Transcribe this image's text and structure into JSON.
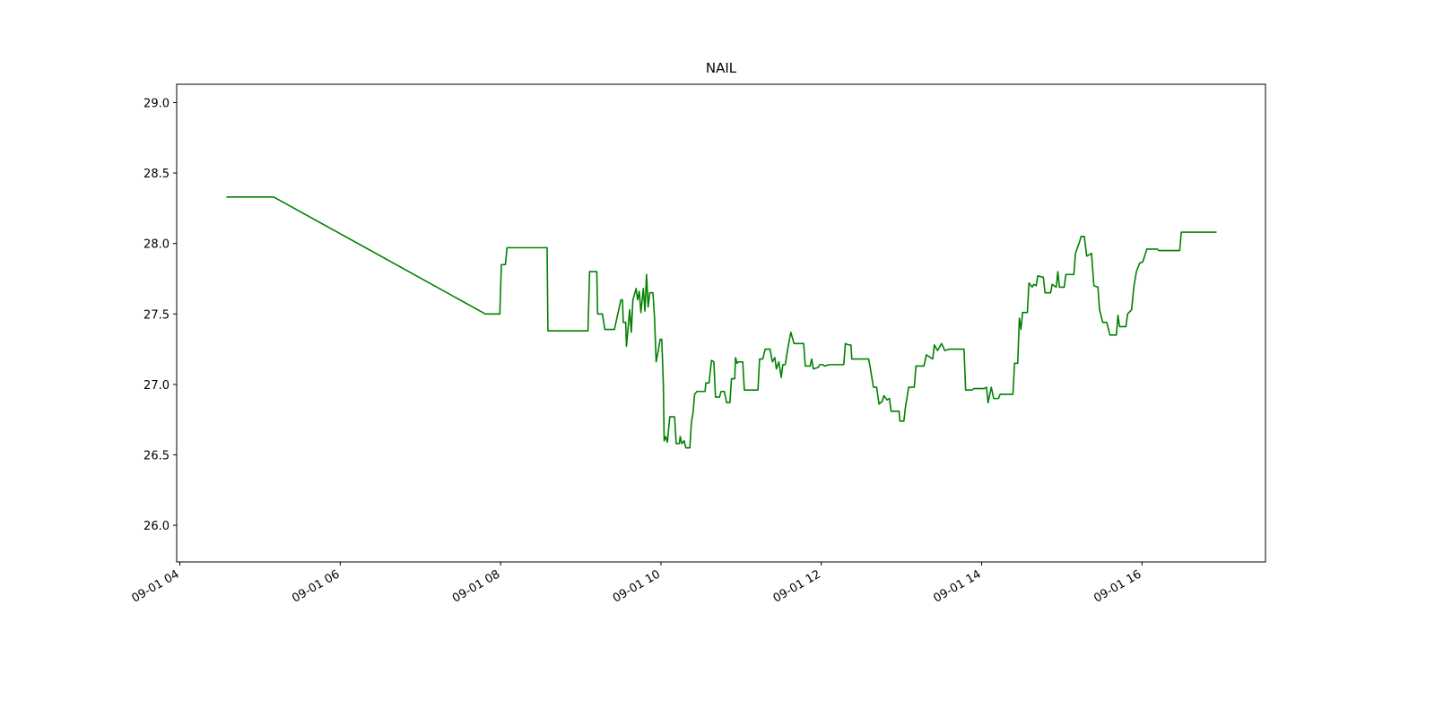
{
  "chart_data": {
    "type": "line",
    "title": "NAIL",
    "color": "#008000",
    "grid": false,
    "x": [
      4.58,
      5.17,
      7.81,
      7.99,
      8.01,
      8.06,
      8.08,
      8.58,
      8.59,
      9.09,
      9.11,
      9.2,
      9.21,
      9.27,
      9.3,
      9.42,
      9.5,
      9.52,
      9.53,
      9.56,
      9.57,
      9.61,
      9.63,
      9.65,
      9.69,
      9.71,
      9.73,
      9.75,
      9.78,
      9.8,
      9.82,
      9.84,
      9.86,
      9.9,
      9.92,
      9.94,
      9.97,
      9.99,
      10.01,
      10.03,
      10.04,
      10.06,
      10.08,
      10.11,
      10.17,
      10.19,
      10.23,
      10.24,
      10.26,
      10.29,
      10.31,
      10.36,
      10.38,
      10.4,
      10.42,
      10.45,
      10.55,
      10.56,
      10.6,
      10.63,
      10.66,
      10.68,
      10.73,
      10.75,
      10.79,
      10.82,
      10.86,
      10.88,
      10.92,
      10.93,
      10.95,
      10.97,
      11.02,
      11.04,
      11.21,
      11.23,
      11.27,
      11.3,
      11.36,
      11.39,
      11.42,
      11.44,
      11.47,
      11.5,
      11.52,
      11.55,
      11.59,
      11.62,
      11.66,
      11.78,
      11.8,
      11.86,
      11.88,
      11.9,
      11.96,
      11.98,
      12.02,
      12.04,
      12.1,
      12.28,
      12.3,
      12.34,
      12.37,
      12.38,
      12.59,
      12.61,
      12.65,
      12.69,
      12.72,
      12.76,
      12.78,
      12.82,
      12.85,
      12.87,
      12.97,
      12.98,
      13.03,
      13.05,
      13.09,
      13.16,
      13.18,
      13.28,
      13.31,
      13.39,
      13.41,
      13.45,
      13.5,
      13.54,
      13.59,
      13.78,
      13.8,
      13.88,
      13.9,
      14.03,
      14.06,
      14.08,
      14.12,
      14.15,
      14.21,
      14.23,
      14.39,
      14.41,
      14.45,
      14.47,
      14.49,
      14.51,
      14.57,
      14.59,
      14.63,
      14.65,
      14.68,
      14.7,
      14.77,
      14.79,
      14.86,
      14.88,
      14.93,
      14.95,
      14.97,
      15.03,
      15.05,
      15.15,
      15.17,
      15.22,
      15.24,
      15.28,
      15.31,
      15.37,
      15.4,
      15.45,
      15.47,
      15.51,
      15.56,
      15.6,
      15.68,
      15.7,
      15.72,
      15.8,
      15.82,
      15.87,
      15.9,
      15.93,
      15.97,
      16.01,
      16.06,
      16.19,
      16.21,
      16.47,
      16.49,
      16.93
    ],
    "values": [
      28.33,
      28.33,
      27.5,
      27.5,
      27.85,
      27.85,
      27.97,
      27.97,
      27.38,
      27.38,
      27.8,
      27.8,
      27.5,
      27.5,
      27.39,
      27.39,
      27.6,
      27.6,
      27.44,
      27.44,
      27.27,
      27.53,
      27.37,
      27.6,
      27.68,
      27.6,
      27.66,
      27.51,
      27.68,
      27.52,
      27.78,
      27.55,
      27.65,
      27.65,
      27.47,
      27.16,
      27.25,
      27.32,
      27.32,
      27.0,
      26.6,
      26.63,
      26.59,
      26.77,
      26.77,
      26.58,
      26.58,
      26.63,
      26.58,
      26.6,
      26.55,
      26.55,
      26.73,
      26.8,
      26.93,
      26.95,
      26.95,
      27.01,
      27.01,
      27.17,
      27.16,
      26.91,
      26.91,
      26.95,
      26.95,
      26.87,
      26.87,
      27.04,
      27.04,
      27.19,
      27.15,
      27.16,
      27.16,
      26.96,
      26.96,
      27.18,
      27.18,
      27.25,
      27.25,
      27.16,
      27.19,
      27.11,
      27.16,
      27.05,
      27.14,
      27.14,
      27.28,
      27.37,
      27.29,
      27.29,
      27.13,
      27.13,
      27.18,
      27.11,
      27.12,
      27.14,
      27.14,
      27.13,
      27.14,
      27.14,
      27.29,
      27.28,
      27.28,
      27.18,
      27.18,
      27.12,
      26.98,
      26.98,
      26.86,
      26.88,
      26.92,
      26.89,
      26.9,
      26.81,
      26.81,
      26.74,
      26.74,
      26.84,
      26.98,
      26.98,
      27.13,
      27.13,
      27.21,
      27.18,
      27.28,
      27.24,
      27.29,
      27.24,
      27.25,
      27.25,
      26.96,
      26.96,
      26.97,
      26.97,
      26.98,
      26.87,
      26.98,
      26.9,
      26.9,
      26.93,
      26.93,
      27.15,
      27.15,
      27.47,
      27.39,
      27.51,
      27.51,
      27.72,
      27.69,
      27.71,
      27.7,
      27.77,
      27.76,
      27.65,
      27.65,
      27.71,
      27.69,
      27.8,
      27.69,
      27.69,
      27.78,
      27.78,
      27.93,
      28.01,
      28.05,
      28.05,
      27.91,
      27.93,
      27.7,
      27.69,
      27.53,
      27.44,
      27.44,
      27.35,
      27.35,
      27.49,
      27.41,
      27.41,
      27.5,
      27.53,
      27.7,
      27.8,
      27.86,
      27.87,
      27.96,
      27.96,
      27.95,
      27.95,
      28.08,
      28.08
    ],
    "xlim": [
      3.96,
      17.54
    ],
    "xticks": [
      {
        "value": 4,
        "label": "09-01 04"
      },
      {
        "value": 6,
        "label": "09-01 06"
      },
      {
        "value": 8,
        "label": "09-01 08"
      },
      {
        "value": 10,
        "label": "09-01 10"
      },
      {
        "value": 12,
        "label": "09-01 12"
      },
      {
        "value": 14,
        "label": "09-01 14"
      },
      {
        "value": 16,
        "label": "09-01 16"
      }
    ],
    "ylim": [
      25.74,
      29.13
    ],
    "yticks": [
      {
        "value": 26,
        "label": "26.0"
      },
      {
        "value": 26.5,
        "label": "26.5"
      },
      {
        "value": 27,
        "label": "27.0"
      },
      {
        "value": 27.5,
        "label": "27.5"
      },
      {
        "value": 28,
        "label": "28.0"
      },
      {
        "value": 28.5,
        "label": "28.5"
      },
      {
        "value": 29,
        "label": "29.0"
      }
    ]
  }
}
